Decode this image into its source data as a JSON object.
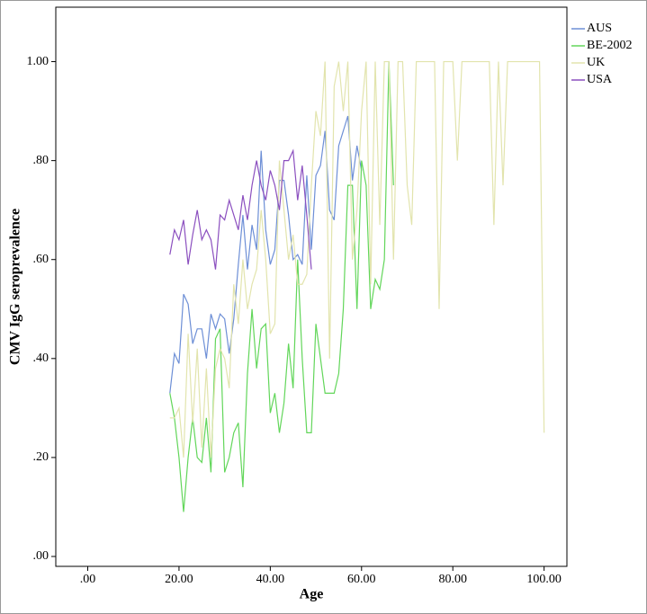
{
  "chart_data": {
    "type": "line",
    "x_label": "Age",
    "y_label": "CMV IgG seroprevalence",
    "xlim": [
      -7,
      105
    ],
    "ylim": [
      -0.02,
      1.11
    ],
    "xticks": [
      {
        "value": 0,
        "label": ".00"
      },
      {
        "value": 20,
        "label": "20.00"
      },
      {
        "value": 40,
        "label": "40.00"
      },
      {
        "value": 60,
        "label": "60.00"
      },
      {
        "value": 80,
        "label": "80.00"
      },
      {
        "value": 100,
        "label": "100.00"
      }
    ],
    "yticks": [
      {
        "value": 0,
        "label": ".00"
      },
      {
        "value": 0.2,
        "label": ".20"
      },
      {
        "value": 0.4,
        "label": ".40"
      },
      {
        "value": 0.6,
        "label": ".60"
      },
      {
        "value": 0.8,
        "label": ".80"
      },
      {
        "value": 1,
        "label": "1.00"
      }
    ],
    "legend": "right-top",
    "series": [
      {
        "name": "AUS",
        "color": "#6d8fd6",
        "x": [
          18,
          19,
          20,
          21,
          22,
          23,
          24,
          25,
          26,
          27,
          28,
          29,
          30,
          31,
          32,
          33,
          34,
          35,
          36,
          37,
          38,
          39,
          40,
          41,
          42,
          43,
          44,
          45,
          46,
          47,
          48,
          49,
          50,
          51,
          52,
          53,
          54,
          55,
          56,
          57,
          58,
          59,
          60
        ],
        "values": [
          0.33,
          0.41,
          0.39,
          0.53,
          0.51,
          0.43,
          0.46,
          0.46,
          0.4,
          0.49,
          0.46,
          0.49,
          0.48,
          0.41,
          0.48,
          0.59,
          0.69,
          0.58,
          0.67,
          0.62,
          0.82,
          0.66,
          0.59,
          0.62,
          0.76,
          0.76,
          0.69,
          0.6,
          0.61,
          0.59,
          0.77,
          0.62,
          0.77,
          0.79,
          0.86,
          0.7,
          0.68,
          0.83,
          0.86,
          0.89,
          0.76,
          0.83,
          0.78
        ]
      },
      {
        "name": "BE-2002",
        "color": "#62d65a",
        "x": [
          18,
          19,
          20,
          21,
          22,
          23,
          24,
          25,
          26,
          27,
          28,
          29,
          30,
          31,
          32,
          33,
          34,
          35,
          36,
          37,
          38,
          39,
          40,
          41,
          42,
          43,
          44,
          45,
          46,
          47,
          48,
          49,
          50,
          51,
          52,
          53,
          54,
          55,
          56,
          57,
          58,
          59,
          60,
          61,
          62,
          63,
          64,
          65,
          66,
          67
        ],
        "values": [
          0.33,
          0.28,
          0.2,
          0.09,
          0.2,
          0.28,
          0.2,
          0.19,
          0.28,
          0.17,
          0.44,
          0.46,
          0.17,
          0.2,
          0.25,
          0.27,
          0.14,
          0.37,
          0.5,
          0.38,
          0.46,
          0.47,
          0.29,
          0.33,
          0.25,
          0.31,
          0.43,
          0.34,
          0.6,
          0.4,
          0.25,
          0.25,
          0.47,
          0.4,
          0.33,
          0.33,
          0.33,
          0.37,
          0.5,
          0.75,
          0.75,
          0.5,
          0.8,
          0.75,
          0.5,
          0.56,
          0.54,
          0.6,
          1.0,
          0.75
        ]
      },
      {
        "name": "UK",
        "color": "#e2e4ad",
        "x": [
          18,
          19,
          20,
          21,
          22,
          23,
          24,
          25,
          26,
          27,
          28,
          29,
          30,
          31,
          32,
          33,
          34,
          35,
          36,
          37,
          38,
          39,
          40,
          41,
          42,
          43,
          44,
          45,
          46,
          47,
          48,
          49,
          50,
          51,
          52,
          53,
          54,
          55,
          56,
          57,
          58,
          59,
          60,
          61,
          62,
          63,
          64,
          65,
          66,
          67,
          68,
          69,
          70,
          71,
          72,
          73,
          74,
          75,
          76,
          77,
          78,
          79,
          80,
          81,
          82,
          83,
          84,
          85,
          86,
          87,
          88,
          89,
          90,
          91,
          92,
          93,
          94,
          95,
          96,
          97,
          98,
          99,
          100
        ],
        "values": [
          0.28,
          0.28,
          0.3,
          0.2,
          0.45,
          0.27,
          0.42,
          0.22,
          0.38,
          0.2,
          0.38,
          0.42,
          0.4,
          0.34,
          0.55,
          0.47,
          0.6,
          0.5,
          0.55,
          0.58,
          0.7,
          0.6,
          0.45,
          0.47,
          0.8,
          0.7,
          0.6,
          0.65,
          0.55,
          0.55,
          0.57,
          0.75,
          0.9,
          0.85,
          1.0,
          0.4,
          0.95,
          1.0,
          0.9,
          1.0,
          0.6,
          0.7,
          0.9,
          1.0,
          0.55,
          1.0,
          0.67,
          1.0,
          1.0,
          0.6,
          1.0,
          1.0,
          0.75,
          0.67,
          1.0,
          1.0,
          1.0,
          1.0,
          1.0,
          0.5,
          1.0,
          1.0,
          1.0,
          0.8,
          1.0,
          1.0,
          1.0,
          1.0,
          1.0,
          1.0,
          1.0,
          0.67,
          1.0,
          0.75,
          1.0,
          1.0,
          1.0,
          1.0,
          1.0,
          1.0,
          1.0,
          1.0,
          0.25
        ]
      },
      {
        "name": "USA",
        "color": "#8b4fbf",
        "x": [
          18,
          19,
          20,
          21,
          22,
          23,
          24,
          25,
          26,
          27,
          28,
          29,
          30,
          31,
          32,
          33,
          34,
          35,
          36,
          37,
          38,
          39,
          40,
          41,
          42,
          43,
          44,
          45,
          46,
          47,
          48,
          49
        ],
        "values": [
          0.61,
          0.66,
          0.64,
          0.68,
          0.59,
          0.65,
          0.7,
          0.64,
          0.66,
          0.64,
          0.58,
          0.69,
          0.68,
          0.72,
          0.69,
          0.66,
          0.73,
          0.68,
          0.75,
          0.8,
          0.75,
          0.72,
          0.78,
          0.75,
          0.7,
          0.8,
          0.8,
          0.82,
          0.72,
          0.79,
          0.69,
          0.58
        ]
      }
    ]
  }
}
